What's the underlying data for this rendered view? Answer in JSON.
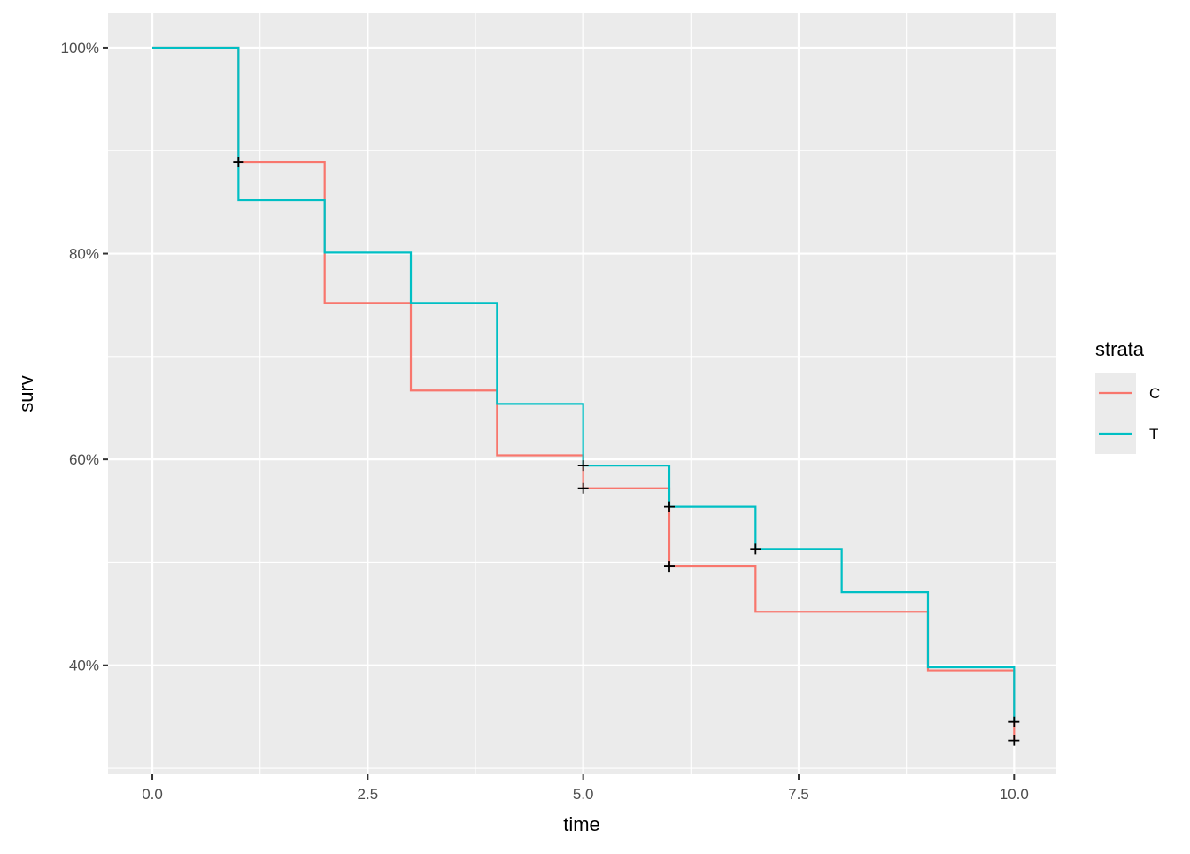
{
  "chart_data": {
    "type": "line",
    "step": true,
    "xlabel": "time",
    "ylabel": "surv",
    "xlim": [
      -0.514,
      10.49
    ],
    "ylim": [
      29.4,
      103.35
    ],
    "x_ticks": [
      0,
      2.5,
      5,
      7.5,
      10
    ],
    "x_tick_labels": [
      "0.0",
      "2.5",
      "5.0",
      "7.5",
      "10.0"
    ],
    "y_ticks": [
      40,
      60,
      80,
      100
    ],
    "y_tick_labels": [
      "40%",
      "60%",
      "80%",
      "100%"
    ],
    "grid": true,
    "background": "#EBEBEB",
    "legend": {
      "title": "strata",
      "placement": "right"
    },
    "series": [
      {
        "name": "C",
        "color": "#F8766D",
        "x": [
          0,
          1,
          2,
          3,
          4,
          5,
          6,
          7,
          9,
          10
        ],
        "y": [
          100,
          88.9,
          75.2,
          66.7,
          60.4,
          57.2,
          49.6,
          45.2,
          39.5,
          32.7
        ],
        "censored": [
          [
            1,
            88.9
          ],
          [
            5,
            57.2
          ],
          [
            6,
            49.6
          ],
          [
            10,
            32.7
          ]
        ]
      },
      {
        "name": "T",
        "color": "#00BFC4",
        "x": [
          0,
          1,
          2,
          3,
          4,
          5,
          6,
          7,
          8,
          9,
          10
        ],
        "y": [
          100,
          85.2,
          80.1,
          75.2,
          65.4,
          59.4,
          55.4,
          51.3,
          47.1,
          39.8,
          34.5
        ],
        "censored": [
          [
            5,
            59.4
          ],
          [
            6,
            55.4
          ],
          [
            7,
            51.3
          ],
          [
            10,
            34.5
          ]
        ]
      }
    ]
  }
}
